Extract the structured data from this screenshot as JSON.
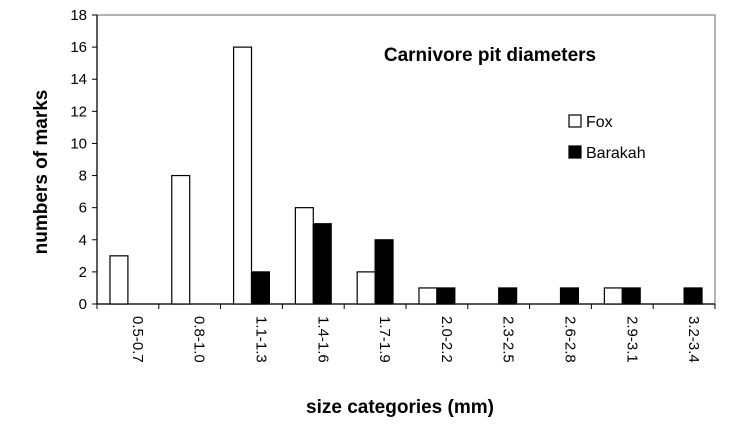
{
  "chart_data": {
    "type": "bar",
    "title": "Carnivore pit diameters",
    "xlabel": "size categories (mm)",
    "ylabel": "numbers of marks",
    "categories": [
      "0.5-0.7",
      "0.8-1.0",
      "1.1-1.3",
      "1.4-1.6",
      "1.7-1.9",
      "2.0-2.2",
      "2.3-2.5",
      "2.6-2.8",
      "2.9-3.1",
      "3.2-3.4"
    ],
    "series": [
      {
        "name": "Fox",
        "values": [
          3,
          8,
          16,
          6,
          2,
          1,
          0,
          0,
          1,
          0
        ],
        "color": "#ffffff"
      },
      {
        "name": "Barakah",
        "values": [
          0,
          0,
          2,
          5,
          4,
          1,
          1,
          1,
          1,
          1
        ],
        "color": "#000000"
      }
    ],
    "ylim": [
      0,
      18
    ],
    "yticks": [
      0,
      2,
      4,
      6,
      8,
      10,
      12,
      14,
      16,
      18
    ],
    "grid": false,
    "legend_position": "right"
  }
}
